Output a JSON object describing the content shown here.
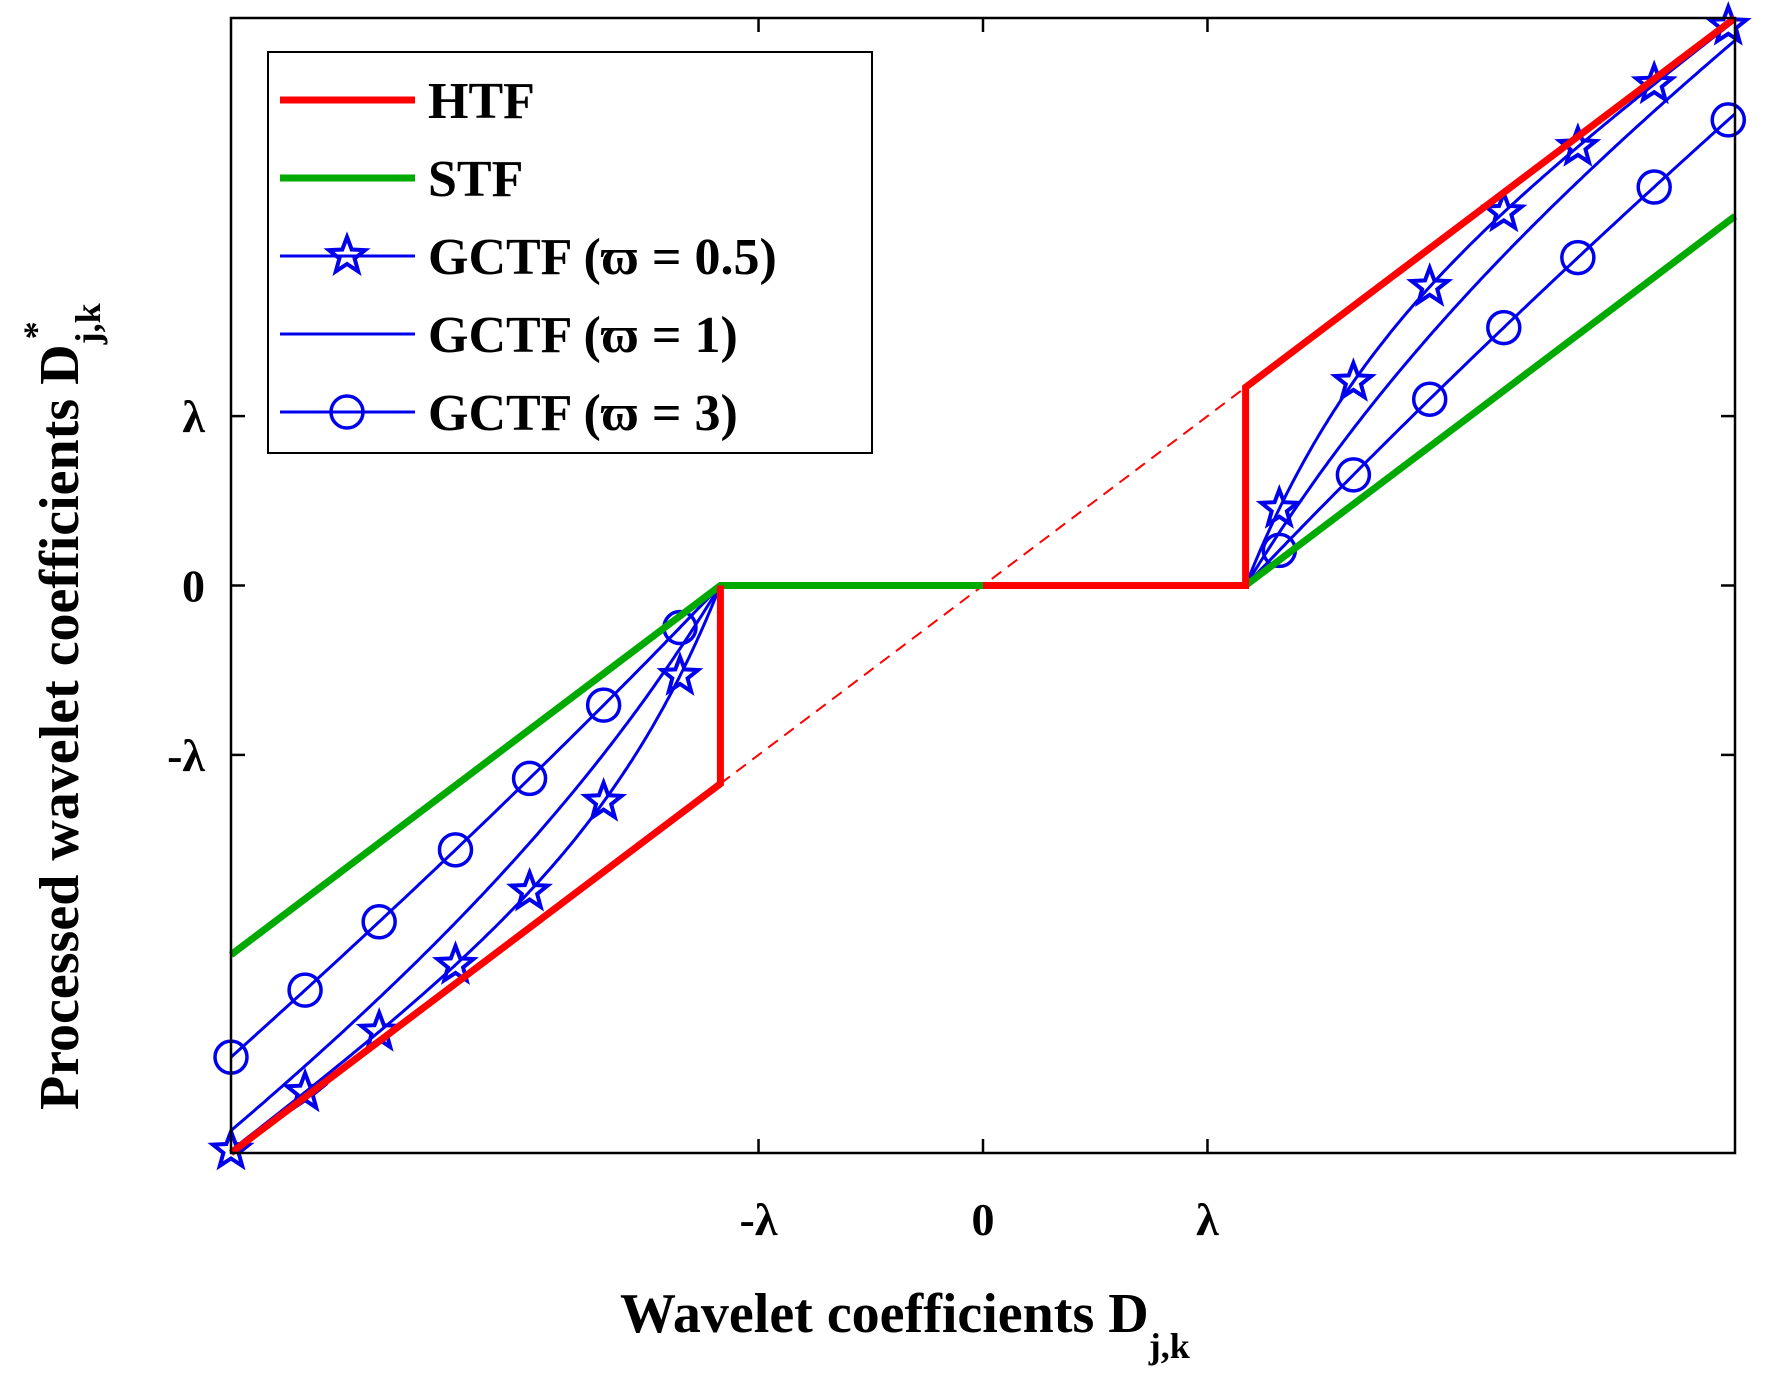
{
  "chart_data": {
    "type": "line",
    "title": "",
    "xlabel": {
      "main": "Wavelet coefficients D",
      "sub": "j,k"
    },
    "ylabel": {
      "main": "Processed wavelet coefficients D",
      "sub": "j,k",
      "sup": "*"
    },
    "units_note": "lambda = 1",
    "xlim": [
      -3.35,
      3.35
    ],
    "ylim": [
      -3.35,
      3.35
    ],
    "xticks": [
      {
        "value": -1,
        "label": "-λ"
      },
      {
        "value": 0,
        "label": "0"
      },
      {
        "value": 1,
        "label": "λ"
      }
    ],
    "yticks": [
      {
        "value": -1,
        "label": "-λ"
      },
      {
        "value": 0,
        "label": "0"
      },
      {
        "value": 1,
        "label": "λ"
      }
    ],
    "threshold": 1.17,
    "legend_position": "top-left",
    "series": [
      {
        "name": "HTF",
        "color": "#ff0000",
        "style": "thick",
        "marker": "none",
        "rule": "y = x for |x| >= threshold, 0 otherwise",
        "points": [
          [
            -3.35,
            -3.35
          ],
          [
            -1.17,
            -1.17
          ],
          [
            -1.17,
            0
          ],
          [
            1.17,
            0
          ],
          [
            1.17,
            1.17
          ],
          [
            3.35,
            3.35
          ]
        ]
      },
      {
        "name": "STF",
        "color": "#00aa00",
        "style": "thick",
        "marker": "none",
        "rule": "y = sign(x)(|x| - threshold) for |x| >= threshold, 0 otherwise",
        "points": [
          [
            -3.35,
            -2.18
          ],
          [
            -1.17,
            0
          ],
          [
            1.17,
            0
          ],
          [
            3.35,
            2.18
          ]
        ]
      },
      {
        "name": "GCTF (ϖ = 0.5)",
        "color": "#0000ee",
        "style": "thin",
        "marker": "star",
        "rule": "y = sign(x)(|x| - threshold·exp(-(|x|-threshold)/0.5))",
        "marker_x": [
          -3.35,
          -3.02,
          -2.69,
          -2.35,
          -2.02,
          -1.69,
          -1.35,
          1.32,
          1.65,
          1.99,
          2.32,
          2.65,
          2.99,
          3.32
        ]
      },
      {
        "name": "GCTF (ϖ = 1)",
        "color": "#0000ee",
        "style": "thin",
        "marker": "none",
        "rule": "y = sign(x)(|x| - threshold·exp(-(|x|-threshold)/1))"
      },
      {
        "name": "GCTF (ϖ = 3)",
        "color": "#0000ee",
        "style": "thin",
        "marker": "circle",
        "rule": "y = sign(x)(|x| - threshold·exp(-(|x|-threshold)/3))",
        "marker_x": [
          -3.35,
          -3.02,
          -2.69,
          -2.35,
          -2.02,
          -1.69,
          -1.35,
          1.32,
          1.65,
          1.99,
          2.32,
          2.65,
          2.99,
          3.32
        ]
      }
    ],
    "reference_line": {
      "name": "y = x (dashed)",
      "color": "#ff0000",
      "from": [
        -1.17,
        -1.17
      ],
      "to": [
        1.17,
        1.17
      ]
    }
  }
}
